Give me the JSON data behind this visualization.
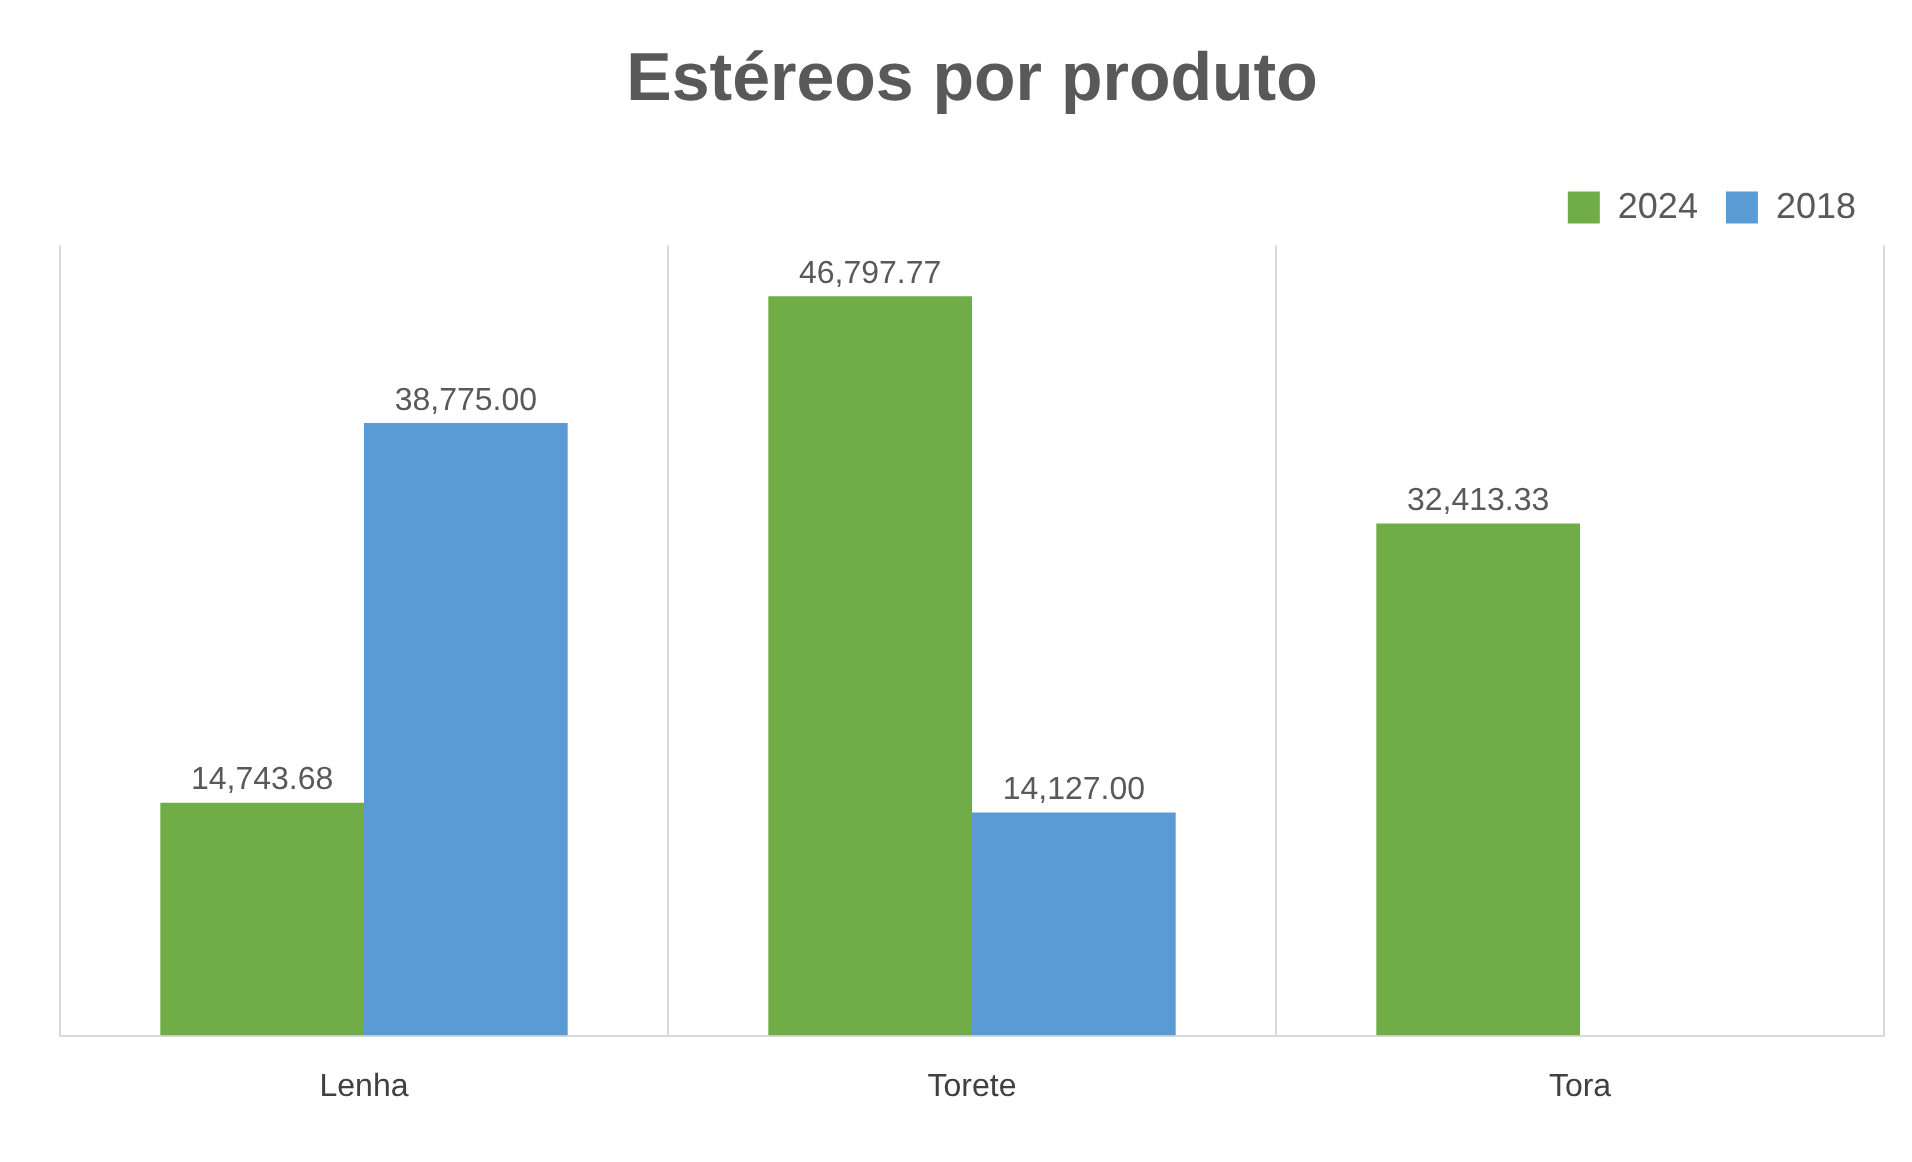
{
  "chart_data": {
    "type": "bar",
    "title": "Estéreos por produto",
    "categories": [
      "Lenha",
      "Torete",
      "Tora"
    ],
    "series": [
      {
        "name": "2024",
        "color": "#70ad47",
        "values": [
          14743.68,
          46797.77,
          32413.33
        ],
        "value_labels": [
          "14,743.68",
          "46,797.77",
          "32,413.33"
        ]
      },
      {
        "name": "2018",
        "color": "#5b9bd5",
        "values": [
          38775,
          14127,
          null
        ],
        "value_labels": [
          "38,775.00",
          "14,127.00",
          null
        ]
      }
    ],
    "ylim": [
      0,
      50000
    ],
    "tick_labels": "x",
    "grid": "x",
    "legend": "top right"
  }
}
